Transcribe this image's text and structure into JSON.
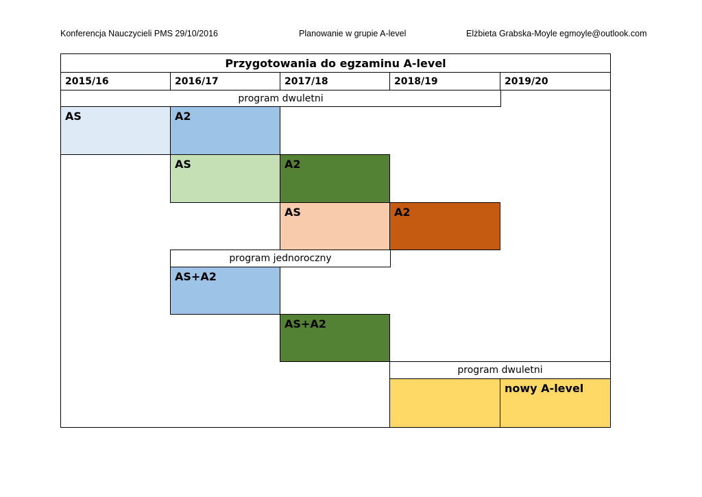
{
  "header": {
    "left": "Konferencja Nauczycieli PMS 29/10/2016",
    "middle": "Planowanie w grupie A-level",
    "right": "Elżbieta Grabska-Moyle egmoyle@outlook.com"
  },
  "table": {
    "title": "Przygotowania do egzaminu A-level",
    "years": [
      "2015/16",
      "2016/17",
      "2017/18",
      "2018/19",
      "2019/20"
    ],
    "program_dwuletni_1": "program dwuletni",
    "program_jednoroczny": "program jednoroczny",
    "program_dwuletni_2": "program dwuletni",
    "blocks": {
      "r1_as": "AS",
      "r1_a2": "A2",
      "r2_as": "AS",
      "r2_a2": "A2",
      "r3_as": "AS",
      "r3_a2": "A2",
      "r4_asa2": "AS+A2",
      "r5_asa2": "AS+A2",
      "new": "nowy A-level"
    }
  },
  "colors": {
    "light_blue": "#deebf7",
    "blue": "#9dc3e6",
    "light_green": "#c5e0b4",
    "dark_green": "#548235",
    "peach": "#f8cbad",
    "dark_orange": "#c55a11",
    "yellow": "#ffd966"
  }
}
